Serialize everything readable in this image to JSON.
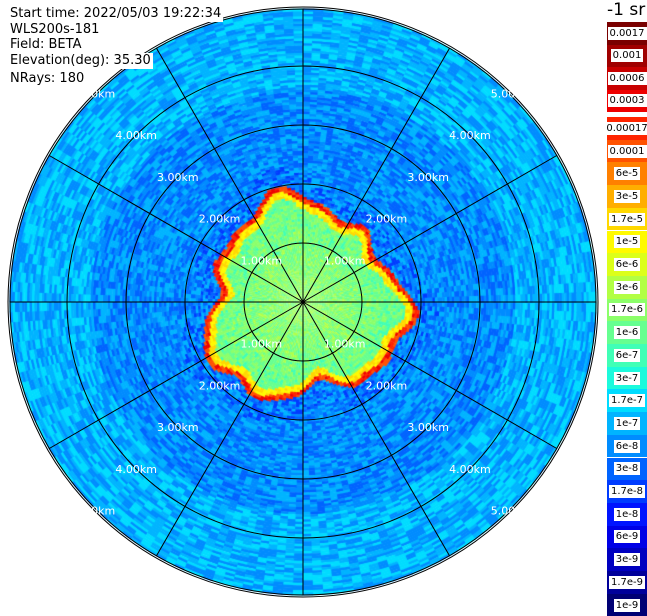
{
  "info": {
    "start_time": "Start time: 2022/05/03 19:22:34",
    "instrument": "WLS200s-181",
    "field": "Field: BETA",
    "elevation": "Elevation(deg): 35.30",
    "nrays": "NRays: 180"
  },
  "units": "-1 sr",
  "range_labels": [
    "1.00km",
    "2.00km",
    "3.00km",
    "4.00km",
    "5.00km"
  ],
  "colorbar": {
    "upper_labels": [
      "0.0017",
      "0.001",
      "0.0006",
      "0.0003"
    ],
    "lower_labels": [
      "0.00017",
      "0.0001",
      "6e-5",
      "3e-5",
      "1.7e-5",
      "1e-5",
      "6e-6",
      "3e-6",
      "1.7e-6",
      "1e-6",
      "6e-7",
      "3e-7",
      "1.7e-7",
      "1e-7",
      "6e-8",
      "3e-8",
      "1.7e-8",
      "1e-8",
      "6e-9",
      "3e-9",
      "1.7e-9",
      "1e-9"
    ],
    "upper_colors": [
      "#7a0000",
      "#a00000",
      "#c80000",
      "#ee0000"
    ],
    "lower_colors": [
      "#ff2400",
      "#ff5200",
      "#ff8000",
      "#ffae00",
      "#ffd800",
      "#fffa00",
      "#dcff1a",
      "#b2ff44",
      "#8cff6a",
      "#66ff90",
      "#40ffb6",
      "#1cfadc",
      "#00dcff",
      "#00b4ff",
      "#008cff",
      "#0064ff",
      "#003cff",
      "#0014ff",
      "#0000e6",
      "#0000c0",
      "#00009a",
      "#000074"
    ]
  }
}
